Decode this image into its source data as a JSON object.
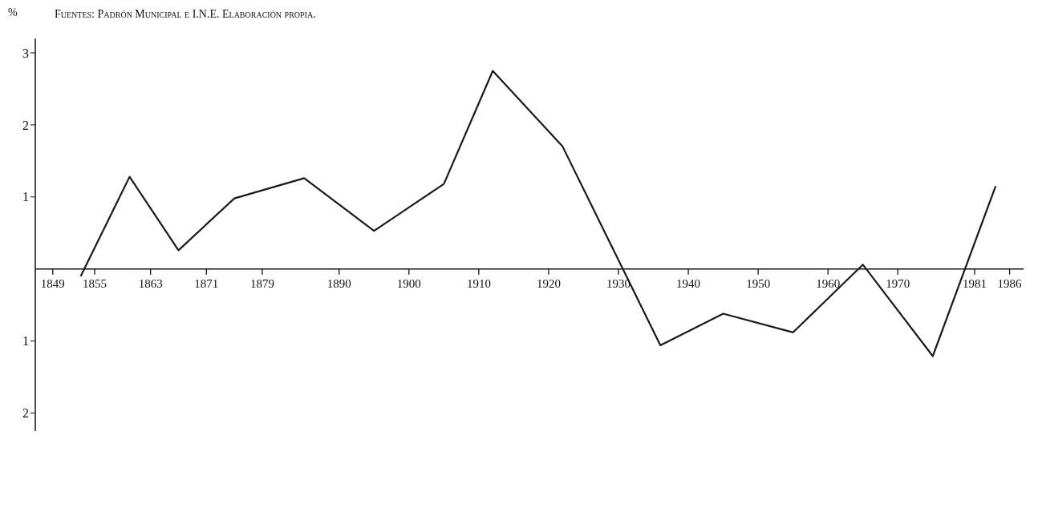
{
  "chart_data": {
    "type": "line",
    "ylabel": "%",
    "annotations": [
      "Fuentes: Padrón Municipal e I.N.E. Elaboración propia."
    ],
    "x": [
      1853,
      1860,
      1867,
      1875,
      1885,
      1895,
      1905,
      1912,
      1922,
      1936,
      1945,
      1955,
      1965,
      1975,
      1984
    ],
    "series": [
      {
        "color": "#1a1a1a",
        "values": [
          -0.1,
          1.28,
          0.26,
          0.98,
          1.26,
          0.53,
          1.18,
          2.75,
          1.7,
          -1.06,
          -0.62,
          -0.88,
          0.06,
          -1.21,
          1.15
        ]
      }
    ],
    "xlim": [
      1846.5,
      1988
    ],
    "xticks": [
      1849,
      1855,
      1863,
      1871,
      1879,
      1890,
      1900,
      1910,
      1920,
      1930,
      1940,
      1950,
      1960,
      1970,
      1981,
      1986
    ],
    "ylim": [
      -2.25,
      3.2
    ],
    "yticks": [
      {
        "value": -2,
        "label": "2"
      },
      {
        "value": -1,
        "label": "1"
      },
      1,
      2,
      3
    ],
    "grid": false,
    "marker": "none",
    "line_style": "solid"
  }
}
